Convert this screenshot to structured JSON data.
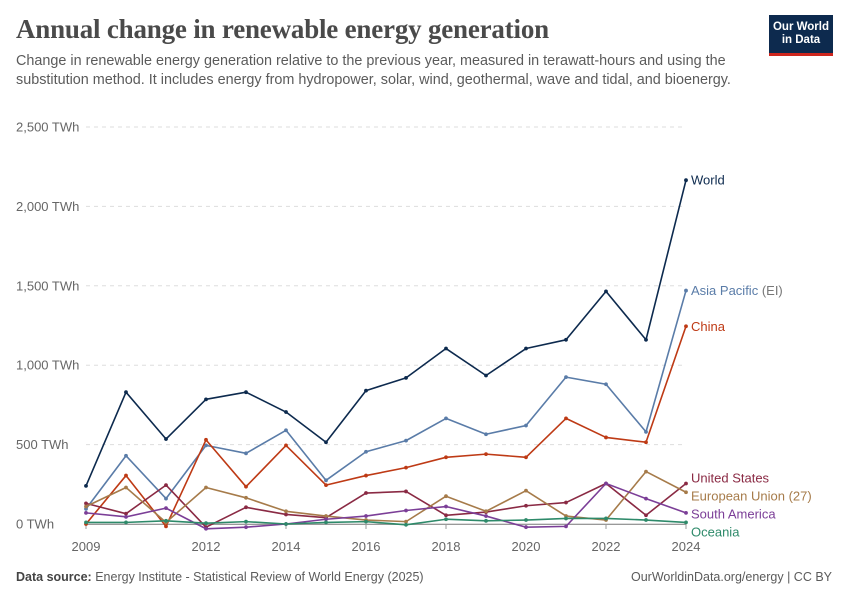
{
  "header": {
    "title": "Annual change in renewable energy generation",
    "subtitle": "Change in renewable energy generation relative to the previous year, measured in terawatt-hours and using the substitution method. It includes energy from hydropower, solar, wind, geothermal, wave and tidal, and bioenergy.",
    "logo_line1": "Our World",
    "logo_line2": "in Data"
  },
  "footer": {
    "source_label": "Data source:",
    "source_text": " Energy Institute - Statistical Review of World Energy (2025)",
    "right_text": "OurWorldinData.org/energy | CC BY"
  },
  "chart_data": {
    "type": "line",
    "x": [
      2009,
      2010,
      2011,
      2012,
      2013,
      2014,
      2015,
      2016,
      2017,
      2018,
      2019,
      2020,
      2021,
      2022,
      2023,
      2024
    ],
    "xticks": [
      2009,
      2012,
      2014,
      2016,
      2018,
      2020,
      2022,
      2024
    ],
    "xtick_labels": [
      "2009",
      "2012",
      "2014",
      "2016",
      "2018",
      "2020",
      "2022",
      "2024"
    ],
    "yticks": [
      0,
      500,
      1000,
      1500,
      2000,
      2500
    ],
    "ytick_labels": [
      "0 TWh",
      "500 TWh",
      "1,000 TWh",
      "1,500 TWh",
      "2,000 TWh",
      "2,500 TWh"
    ],
    "ylim": [
      -60,
      2500
    ],
    "xlim": [
      2009,
      2024
    ],
    "grid": "horizontal-dashed",
    "legend": "inline-right",
    "series": [
      {
        "name": "World",
        "color": "#0d2a4e",
        "values": [
          240,
          830,
          535,
          785,
          830,
          705,
          515,
          840,
          920,
          1105,
          935,
          1105,
          1160,
          1465,
          1160,
          2165
        ]
      },
      {
        "name": "Asia Pacific",
        "name_suffix": " (EI)",
        "color": "#5a7ca8",
        "values": [
          95,
          430,
          160,
          495,
          445,
          590,
          275,
          455,
          525,
          665,
          565,
          620,
          925,
          880,
          580,
          1470
        ]
      },
      {
        "name": "China",
        "color": "#be3a15",
        "values": [
          0,
          305,
          -15,
          530,
          235,
          495,
          245,
          305,
          355,
          420,
          440,
          420,
          665,
          545,
          515,
          1245
        ]
      },
      {
        "name": "United States",
        "color": "#8a2a44",
        "values": [
          130,
          65,
          245,
          -20,
          105,
          60,
          40,
          195,
          205,
          55,
          75,
          115,
          135,
          255,
          55,
          255
        ]
      },
      {
        "name": "European Union (27)",
        "color": "#a67b4a",
        "values": [
          110,
          230,
          10,
          230,
          165,
          80,
          50,
          25,
          15,
          175,
          80,
          210,
          50,
          25,
          330,
          200
        ]
      },
      {
        "name": "South America",
        "color": "#7b3e97",
        "values": [
          70,
          45,
          100,
          -30,
          -20,
          0,
          30,
          50,
          85,
          110,
          50,
          -20,
          -15,
          255,
          160,
          70
        ]
      },
      {
        "name": "Oceania",
        "color": "#2e8a6a",
        "values": [
          10,
          10,
          20,
          5,
          15,
          0,
          10,
          15,
          -5,
          30,
          20,
          25,
          35,
          35,
          25,
          10
        ]
      }
    ]
  }
}
